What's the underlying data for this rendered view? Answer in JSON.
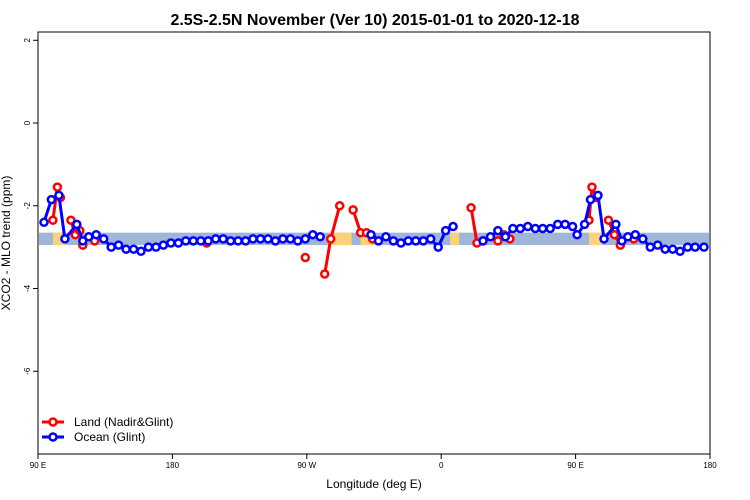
{
  "chart_data": {
    "type": "line",
    "title": "2.5S-2.5N November (Ver 10)   2015-01-01 to 2020-12-18",
    "xlabel": "Longitude (deg E)",
    "ylabel": "XCO2 - MLO trend (ppm)",
    "xlim": [
      90,
      540
    ],
    "ylim": [
      -8,
      2.2
    ],
    "x_ticks": [
      {
        "value": 90,
        "label": "90 E"
      },
      {
        "value": 180,
        "label": "180"
      },
      {
        "value": 270,
        "label": "90 W"
      },
      {
        "value": 360,
        "label": "0"
      },
      {
        "value": 450,
        "label": "90 E"
      },
      {
        "value": 540,
        "label": "180"
      }
    ],
    "y_ticks": [
      {
        "value": 2,
        "label": "2"
      },
      {
        "value": 0,
        "label": "0"
      },
      {
        "value": -2,
        "label": "-2"
      },
      {
        "value": -4,
        "label": "-4"
      },
      {
        "value": -6,
        "label": "-6"
      }
    ],
    "band": {
      "lower": -2.95,
      "upper": -2.65
    },
    "legend": {
      "position": "bottom-left"
    },
    "series": [
      {
        "name": "Land (Nadir&Glint)",
        "color": "#ff0000",
        "segments": [
          [
            [
              100,
              -2.35
            ],
            [
              103,
              -1.55
            ],
            [
              105,
              -1.8
            ]
          ],
          [
            [
              112,
              -2.35
            ],
            [
              115,
              -2.7
            ],
            [
              118,
              -2.6
            ],
            [
              120,
              -2.95
            ]
          ],
          [
            [
              128,
              -2.85
            ]
          ],
          [
            [
              203,
              -2.9
            ]
          ],
          [
            [
              269,
              -3.25
            ]
          ],
          [
            [
              282,
              -3.65
            ],
            [
              286,
              -2.8
            ],
            [
              292,
              -2.0
            ]
          ],
          [
            [
              301,
              -2.1
            ],
            [
              306,
              -2.65
            ],
            [
              310,
              -2.65
            ],
            [
              314,
              -2.8
            ]
          ],
          [
            [
              380,
              -2.05
            ],
            [
              384,
              -2.9
            ],
            [
              388,
              -2.85
            ]
          ],
          [
            [
              398,
              -2.85
            ],
            [
              402,
              -2.7
            ],
            [
              406,
              -2.8
            ]
          ],
          [
            [
              459,
              -2.35
            ],
            [
              461,
              -1.55
            ],
            [
              464,
              -1.8
            ]
          ],
          [
            [
              472,
              -2.35
            ],
            [
              476,
              -2.7
            ],
            [
              480,
              -2.95
            ]
          ],
          [
            [
              489,
              -2.8
            ]
          ]
        ]
      },
      {
        "name": "Ocean (Glint)",
        "color": "#0000ff",
        "segments": [
          [
            [
              94,
              -2.4
            ],
            [
              99,
              -1.85
            ],
            [
              104,
              -1.75
            ],
            [
              108,
              -2.8
            ],
            [
              116,
              -2.45
            ],
            [
              120,
              -2.85
            ],
            [
              124,
              -2.75
            ],
            [
              129,
              -2.7
            ],
            [
              134,
              -2.8
            ],
            [
              139,
              -3.0
            ],
            [
              144,
              -2.95
            ],
            [
              149,
              -3.05
            ],
            [
              154,
              -3.05
            ],
            [
              159,
              -3.1
            ],
            [
              164,
              -3.0
            ],
            [
              169,
              -3.0
            ],
            [
              174,
              -2.95
            ],
            [
              179,
              -2.9
            ],
            [
              184,
              -2.9
            ],
            [
              189,
              -2.85
            ],
            [
              194,
              -2.85
            ],
            [
              199,
              -2.85
            ],
            [
              204,
              -2.85
            ],
            [
              209,
              -2.8
            ],
            [
              214,
              -2.8
            ],
            [
              219,
              -2.85
            ],
            [
              224,
              -2.85
            ],
            [
              229,
              -2.85
            ],
            [
              234,
              -2.8
            ],
            [
              239,
              -2.8
            ],
            [
              244,
              -2.8
            ],
            [
              249,
              -2.85
            ],
            [
              254,
              -2.8
            ],
            [
              259,
              -2.8
            ],
            [
              264,
              -2.85
            ],
            [
              269,
              -2.8
            ],
            [
              274,
              -2.7
            ],
            [
              279,
              -2.75
            ]
          ],
          [
            [
              313,
              -2.7
            ],
            [
              318,
              -2.85
            ],
            [
              323,
              -2.75
            ],
            [
              328,
              -2.85
            ],
            [
              333,
              -2.9
            ],
            [
              338,
              -2.85
            ],
            [
              343,
              -2.85
            ],
            [
              348,
              -2.85
            ],
            [
              353,
              -2.8
            ],
            [
              358,
              -3.0
            ],
            [
              363,
              -2.6
            ],
            [
              368,
              -2.5
            ]
          ],
          [
            [
              388,
              -2.85
            ],
            [
              393,
              -2.75
            ],
            [
              398,
              -2.6
            ],
            [
              403,
              -2.75
            ],
            [
              408,
              -2.55
            ],
            [
              413,
              -2.55
            ],
            [
              418,
              -2.5
            ],
            [
              423,
              -2.55
            ],
            [
              428,
              -2.55
            ],
            [
              433,
              -2.55
            ],
            [
              438,
              -2.45
            ],
            [
              443,
              -2.45
            ],
            [
              448,
              -2.5
            ],
            [
              451,
              -2.7
            ],
            [
              456,
              -2.45
            ],
            [
              460,
              -1.85
            ],
            [
              465,
              -1.75
            ],
            [
              469,
              -2.8
            ],
            [
              477,
              -2.45
            ],
            [
              481,
              -2.85
            ],
            [
              485,
              -2.75
            ],
            [
              490,
              -2.7
            ],
            [
              495,
              -2.8
            ],
            [
              500,
              -3.0
            ],
            [
              505,
              -2.95
            ],
            [
              510,
              -3.05
            ],
            [
              515,
              -3.05
            ],
            [
              520,
              -3.1
            ],
            [
              525,
              -3.0
            ],
            [
              530,
              -3.0
            ],
            [
              536,
              -3.0
            ]
          ]
        ]
      }
    ]
  }
}
